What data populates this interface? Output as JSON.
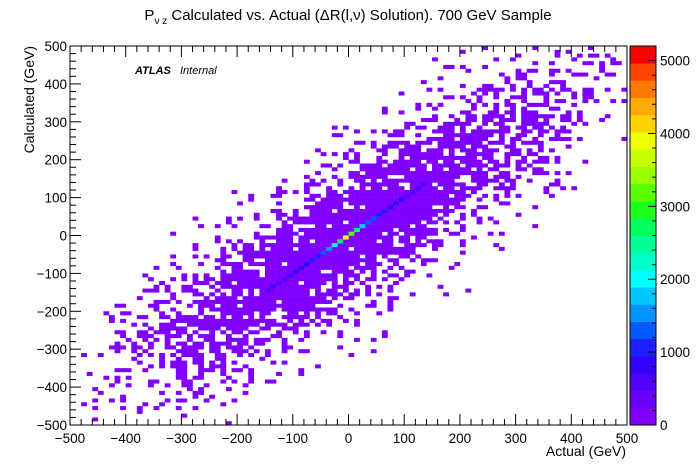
{
  "chart_data": {
    "type": "heatmap",
    "title_main": "P",
    "title_sub": "ν z",
    "title_rest": " Calculated vs. Actual (ΔR(l,ν) Solution). 700 GeV Sample",
    "xlabel": "Actual (GeV)",
    "ylabel": "Calculated (GeV)",
    "xlim": [
      -500,
      500
    ],
    "ylim": [
      -500,
      500
    ],
    "xticks": [
      -500,
      -400,
      -300,
      -200,
      -100,
      0,
      100,
      200,
      300,
      400,
      500
    ],
    "yticks": [
      -500,
      -400,
      -300,
      -200,
      -100,
      0,
      100,
      200,
      300,
      400,
      500
    ],
    "bin_width": 10,
    "zlim": [
      0,
      5200
    ],
    "colorbar_ticks": [
      0,
      1000,
      2000,
      3000,
      4000,
      5000
    ],
    "palette": [
      "#7f00ff",
      "#6a00ff",
      "#4f00ff",
      "#3200ff",
      "#1e1eff",
      "#005aff",
      "#0096ff",
      "#00c8ff",
      "#00ffff",
      "#00ffc8",
      "#00ff96",
      "#00ff5a",
      "#1eff1e",
      "#5aff00",
      "#96ff00",
      "#c8ff00",
      "#f0ff00",
      "#ffd200",
      "#ffaa00",
      "#ff7800",
      "#ff4600",
      "#ff0000"
    ],
    "annotation_bold": "ATLAS",
    "annotation_italic": "Internal",
    "diagonal_bins": [
      {
        "x": -150,
        "y": -150,
        "value": 520
      },
      {
        "x": -140,
        "y": -140,
        "value": 560
      },
      {
        "x": -130,
        "y": -130,
        "value": 620
      },
      {
        "x": -120,
        "y": -120,
        "value": 650
      },
      {
        "x": -110,
        "y": -110,
        "value": 700
      },
      {
        "x": -100,
        "y": -100,
        "value": 760
      },
      {
        "x": -90,
        "y": -90,
        "value": 830
      },
      {
        "x": -80,
        "y": -80,
        "value": 900
      },
      {
        "x": -70,
        "y": -70,
        "value": 980
      },
      {
        "x": -60,
        "y": -60,
        "value": 1100
      },
      {
        "x": -50,
        "y": -50,
        "value": 1250
      },
      {
        "x": -40,
        "y": -40,
        "value": 1450
      },
      {
        "x": -30,
        "y": -30,
        "value": 1900
      },
      {
        "x": -20,
        "y": -20,
        "value": 2700
      },
      {
        "x": -10,
        "y": -10,
        "value": 3900
      },
      {
        "x": 0,
        "y": 0,
        "value": 3300
      },
      {
        "x": 10,
        "y": 10,
        "value": 2600
      },
      {
        "x": 20,
        "y": 20,
        "value": 1800
      },
      {
        "x": 30,
        "y": 30,
        "value": 1400
      },
      {
        "x": 40,
        "y": 40,
        "value": 1200
      },
      {
        "x": 50,
        "y": 50,
        "value": 1050
      },
      {
        "x": 60,
        "y": 60,
        "value": 950
      },
      {
        "x": 70,
        "y": 70,
        "value": 880
      },
      {
        "x": 80,
        "y": 80,
        "value": 800
      },
      {
        "x": 90,
        "y": 90,
        "value": 720
      },
      {
        "x": 100,
        "y": 100,
        "value": 650
      },
      {
        "x": 110,
        "y": 110,
        "value": 600
      },
      {
        "x": 120,
        "y": 120,
        "value": 560
      },
      {
        "x": 130,
        "y": 130,
        "value": 520
      }
    ]
  }
}
